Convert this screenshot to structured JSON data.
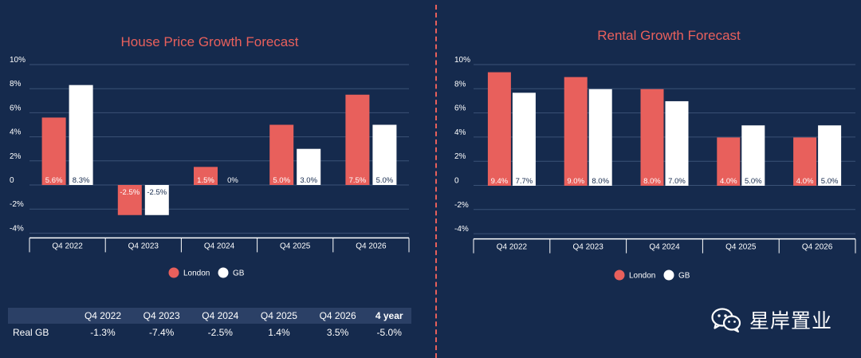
{
  "colors": {
    "london": "#e8605c",
    "gb": "#ffffff",
    "background": "#152a4d",
    "grid": "#3b5276"
  },
  "chart_data": [
    {
      "type": "bar",
      "title": "House Price Growth Forecast",
      "categories": [
        "Q4 2022",
        "Q4 2023",
        "Q4 2024",
        "Q4 2025",
        "Q4 2026"
      ],
      "series": [
        {
          "name": "London",
          "values": [
            5.6,
            -2.5,
            1.5,
            5.0,
            7.5
          ],
          "labels": [
            "5.6%",
            "-2.5%",
            "1.5%",
            "5.0%",
            "7.5%"
          ]
        },
        {
          "name": "GB",
          "values": [
            8.3,
            -2.5,
            0,
            3.0,
            5.0
          ],
          "labels": [
            "8.3%",
            "-2.5%",
            "0%",
            "3.0%",
            "5.0%"
          ]
        }
      ],
      "yticks": [
        "10%",
        "8%",
        "6%",
        "4%",
        "2%",
        "0",
        "-2%",
        "-4%"
      ],
      "ylim": [
        -4,
        10
      ],
      "grid": true,
      "legend": "bottom-center"
    },
    {
      "type": "bar",
      "title": "Rental Growth Forecast",
      "categories": [
        "Q4 2022",
        "Q4 2023",
        "Q4 2024",
        "Q4 2025",
        "Q4 2026"
      ],
      "series": [
        {
          "name": "London",
          "values": [
            9.4,
            9.0,
            8.0,
            4.0,
            4.0
          ],
          "labels": [
            "9.4%",
            "9.0%",
            "8.0%",
            "4.0%",
            "4.0%"
          ]
        },
        {
          "name": "GB",
          "values": [
            7.7,
            8.0,
            7.0,
            5.0,
            5.0
          ],
          "labels": [
            "7.7%",
            "8.0%",
            "7.0%",
            "5.0%",
            "5.0%"
          ]
        }
      ],
      "yticks": [
        "10%",
        "8%",
        "6%",
        "4%",
        "2%",
        "0",
        "-2%",
        "-4%"
      ],
      "ylim": [
        -4,
        10
      ],
      "grid": true,
      "legend": "bottom-center"
    }
  ],
  "real_gb_table": {
    "headers": [
      "",
      "Q4 2022",
      "Q4 2023",
      "Q4 2024",
      "Q4 2025",
      "Q4 2026",
      "4 year"
    ],
    "row_label": "Real GB",
    "values": [
      "-1.3%",
      "-7.4%",
      "-2.5%",
      "1.4%",
      "3.5%",
      "-5.0%"
    ]
  },
  "watermark": {
    "text": "星岸置业",
    "icon": "wechat-icon"
  }
}
